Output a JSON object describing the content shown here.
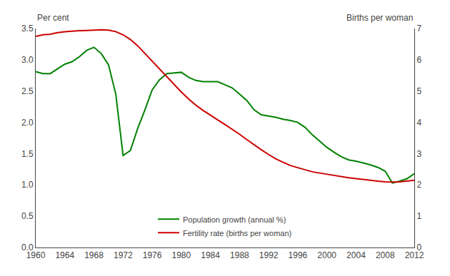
{
  "chart_data": {
    "type": "line",
    "ylabel": "Per cent",
    "y2label": "Births per woman",
    "x": [
      1960,
      1961,
      1962,
      1963,
      1964,
      1965,
      1966,
      1967,
      1968,
      1969,
      1970,
      1971,
      1972,
      1973,
      1974,
      1975,
      1976,
      1977,
      1978,
      1979,
      1980,
      1981,
      1982,
      1983,
      1984,
      1985,
      1986,
      1987,
      1988,
      1989,
      1990,
      1991,
      1992,
      1993,
      1994,
      1995,
      1996,
      1997,
      1998,
      1999,
      2000,
      2001,
      2002,
      2003,
      2004,
      2005,
      2006,
      2007,
      2008,
      2009,
      2010,
      2011,
      2012
    ],
    "series": [
      {
        "name": "Population growth (annual %)",
        "color": "#008000",
        "values": [
          2.81,
          2.78,
          2.78,
          2.86,
          2.93,
          2.97,
          3.05,
          3.15,
          3.2,
          3.1,
          2.92,
          2.45,
          1.47,
          1.55,
          1.9,
          2.2,
          2.52,
          2.68,
          2.78,
          2.79,
          2.8,
          2.72,
          2.67,
          2.65,
          2.65,
          2.65,
          2.6,
          2.55,
          2.45,
          2.35,
          2.2,
          2.12,
          2.1,
          2.08,
          2.05,
          2.03,
          2.0,
          1.92,
          1.8,
          1.7,
          1.6,
          1.52,
          1.45,
          1.4,
          1.38,
          1.35,
          1.32,
          1.28,
          1.22,
          1.03,
          1.06,
          1.1,
          1.18
        ]
      },
      {
        "name": "Fertility rate (births per woman)",
        "color": "#cc0000",
        "axis": "y2",
        "values": [
          6.75,
          6.8,
          6.82,
          6.87,
          6.9,
          6.92,
          6.93,
          6.94,
          6.95,
          6.96,
          6.95,
          6.9,
          6.8,
          6.65,
          6.45,
          6.2,
          5.95,
          5.7,
          5.45,
          5.2,
          4.97,
          4.75,
          4.55,
          4.38,
          4.22,
          4.08,
          3.93,
          3.78,
          3.62,
          3.45,
          3.28,
          3.12,
          2.97,
          2.83,
          2.72,
          2.62,
          2.55,
          2.48,
          2.42,
          2.38,
          2.34,
          2.3,
          2.27,
          2.23,
          2.2,
          2.17,
          2.15,
          2.12,
          2.1,
          2.09,
          2.1,
          2.12,
          2.15
        ]
      }
    ],
    "xlim": [
      1960,
      2012
    ],
    "xticks": [
      1960,
      1964,
      1968,
      1972,
      1976,
      1980,
      1984,
      1988,
      1992,
      1996,
      2000,
      2004,
      2008,
      2012
    ],
    "ylim": [
      0.0,
      3.5
    ],
    "yticks": [
      {
        "value": 0.0,
        "label": "0.0"
      },
      0.5,
      {
        "value": 1.0,
        "label": "1.0"
      },
      1.5,
      {
        "value": 2.0,
        "label": "2.0"
      },
      2.5,
      {
        "value": 3.0,
        "label": "3.0"
      },
      3.5
    ],
    "y2lim": [
      0,
      7
    ],
    "y2ticks": [
      0,
      1,
      2,
      3,
      4,
      5,
      6,
      7
    ],
    "grid": false,
    "legend": "lower center"
  }
}
